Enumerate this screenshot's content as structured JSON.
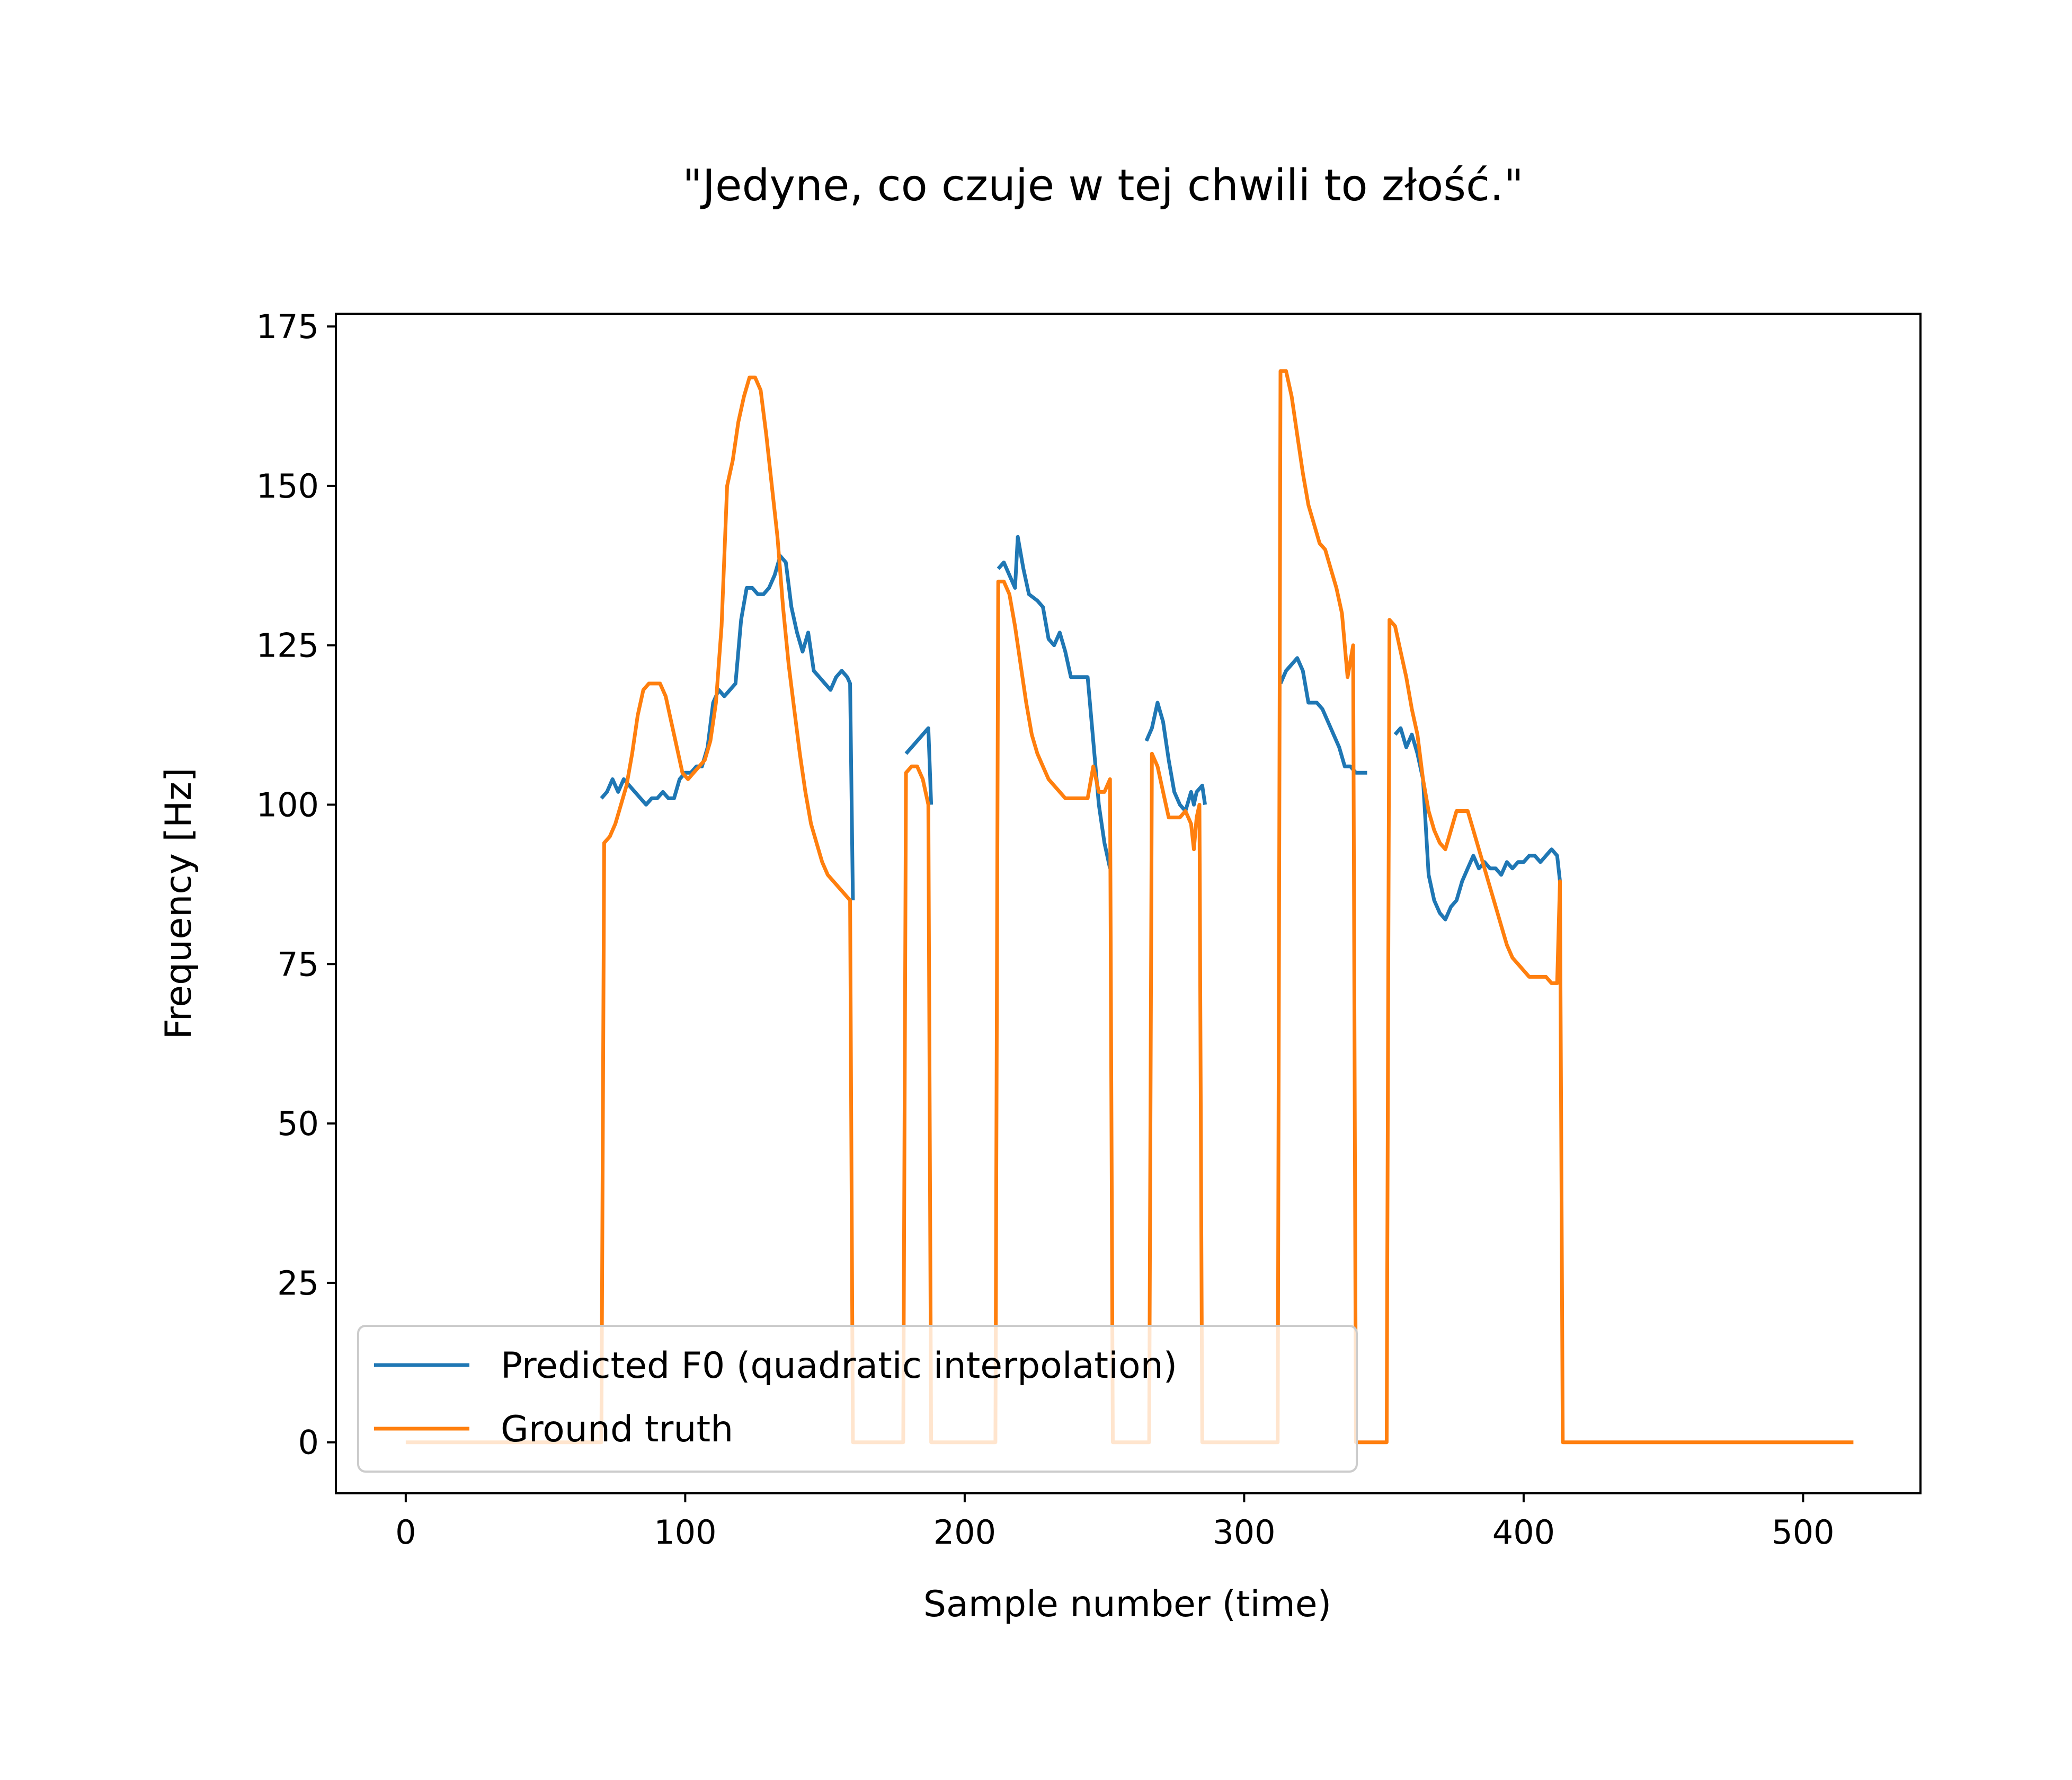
{
  "chart_data": {
    "type": "line",
    "title": "\"Jedyne, co czuje w tej chwili to złość.\"",
    "xlabel": "Sample number (time)",
    "ylabel": "Frequency [Hz]",
    "xlim": [
      -25,
      542
    ],
    "ylim": [
      -8,
      177
    ],
    "xticks": [
      0,
      100,
      200,
      300,
      400,
      500
    ],
    "yticks": [
      0,
      25,
      50,
      75,
      100,
      125,
      150,
      175
    ],
    "grid": false,
    "legend_position": "lower-left",
    "series": [
      {
        "name": "Predicted F0 (quadratic interpolation)",
        "color": "#1f77b4",
        "segments": [
          [
            [
              70,
              101
            ],
            [
              72,
              102
            ],
            [
              74,
              104
            ],
            [
              76,
              102
            ],
            [
              78,
              104
            ],
            [
              80,
              103
            ],
            [
              82,
              102
            ],
            [
              84,
              101
            ],
            [
              86,
              100
            ],
            [
              88,
              101
            ],
            [
              90,
              101
            ],
            [
              92,
              102
            ],
            [
              94,
              101
            ],
            [
              96,
              101
            ],
            [
              98,
              104
            ],
            [
              100,
              105
            ],
            [
              102,
              105
            ],
            [
              104,
              106
            ],
            [
              106,
              106
            ],
            [
              108,
              109
            ],
            [
              110,
              116
            ],
            [
              112,
              118
            ],
            [
              114,
              117
            ],
            [
              116,
              118
            ],
            [
              118,
              119
            ],
            [
              120,
              129
            ],
            [
              122,
              134
            ],
            [
              124,
              134
            ],
            [
              126,
              133
            ],
            [
              128,
              133
            ],
            [
              130,
              134
            ],
            [
              132,
              136
            ],
            [
              134,
              139
            ],
            [
              136,
              138
            ],
            [
              138,
              131
            ],
            [
              140,
              127
            ],
            [
              142,
              124
            ],
            [
              144,
              127
            ],
            [
              146,
              121
            ],
            [
              148,
              120
            ],
            [
              150,
              119
            ],
            [
              152,
              118
            ],
            [
              154,
              120
            ],
            [
              156,
              121
            ],
            [
              158,
              120
            ],
            [
              159,
              119
            ],
            [
              160,
              85
            ]
          ],
          [
            [
              179,
              108
            ],
            [
              181,
              109
            ],
            [
              183,
              110
            ],
            [
              185,
              111
            ],
            [
              187,
              112
            ],
            [
              188,
              100
            ]
          ],
          [
            [
              212,
              137
            ],
            [
              214,
              138
            ],
            [
              216,
              136
            ],
            [
              218,
              134
            ],
            [
              219,
              142
            ],
            [
              221,
              137
            ],
            [
              223,
              133
            ],
            [
              226,
              132
            ],
            [
              228,
              131
            ],
            [
              230,
              126
            ],
            [
              232,
              125
            ],
            [
              234,
              127
            ],
            [
              236,
              124
            ],
            [
              238,
              120
            ],
            [
              240,
              120
            ],
            [
              242,
              120
            ],
            [
              244,
              120
            ],
            [
              246,
              110
            ],
            [
              248,
              100
            ],
            [
              250,
              94
            ],
            [
              252,
              90
            ]
          ],
          [
            [
              265,
              110
            ],
            [
              267,
              112
            ],
            [
              269,
              116
            ],
            [
              271,
              113
            ],
            [
              273,
              107
            ],
            [
              275,
              102
            ],
            [
              277,
              100
            ],
            [
              279,
              99
            ],
            [
              281,
              102
            ],
            [
              282,
              100
            ],
            [
              283,
              102
            ],
            [
              285,
              103
            ],
            [
              286,
              100
            ]
          ],
          [
            [
              313,
              119
            ],
            [
              315,
              121
            ],
            [
              317,
              122
            ],
            [
              319,
              123
            ],
            [
              321,
              121
            ],
            [
              323,
              116
            ],
            [
              326,
              116
            ],
            [
              328,
              115
            ],
            [
              330,
              113
            ],
            [
              332,
              111
            ],
            [
              334,
              109
            ],
            [
              336,
              106
            ],
            [
              338,
              106
            ],
            [
              340,
              105
            ],
            [
              342,
              105
            ],
            [
              344,
              105
            ]
          ],
          [
            [
              354,
              111
            ],
            [
              356,
              112
            ],
            [
              358,
              109
            ],
            [
              360,
              111
            ],
            [
              362,
              108
            ],
            [
              364,
              104
            ],
            [
              366,
              89
            ],
            [
              368,
              85
            ],
            [
              370,
              83
            ],
            [
              372,
              82
            ],
            [
              374,
              84
            ],
            [
              376,
              85
            ],
            [
              378,
              88
            ],
            [
              380,
              90
            ],
            [
              382,
              92
            ],
            [
              384,
              90
            ],
            [
              386,
              91
            ],
            [
              388,
              90
            ],
            [
              390,
              90
            ],
            [
              392,
              89
            ],
            [
              394,
              91
            ],
            [
              396,
              90
            ],
            [
              398,
              91
            ],
            [
              400,
              91
            ],
            [
              402,
              92
            ],
            [
              404,
              92
            ],
            [
              406,
              91
            ],
            [
              408,
              92
            ],
            [
              410,
              93
            ],
            [
              412,
              92
            ],
            [
              413,
              88
            ]
          ]
        ]
      },
      {
        "name": "Ground truth",
        "color": "#ff7f0e",
        "points": [
          [
            0,
            0
          ],
          [
            70,
            0
          ],
          [
            71,
            94
          ],
          [
            73,
            95
          ],
          [
            75,
            97
          ],
          [
            77,
            100
          ],
          [
            79,
            103
          ],
          [
            81,
            108
          ],
          [
            83,
            114
          ],
          [
            85,
            118
          ],
          [
            87,
            119
          ],
          [
            89,
            119
          ],
          [
            91,
            119
          ],
          [
            93,
            117
          ],
          [
            95,
            113
          ],
          [
            97,
            109
          ],
          [
            99,
            105
          ],
          [
            101,
            104
          ],
          [
            103,
            105
          ],
          [
            105,
            106
          ],
          [
            107,
            107
          ],
          [
            109,
            110
          ],
          [
            111,
            116
          ],
          [
            113,
            128
          ],
          [
            115,
            150
          ],
          [
            117,
            154
          ],
          [
            119,
            160
          ],
          [
            121,
            164
          ],
          [
            123,
            167
          ],
          [
            125,
            167
          ],
          [
            127,
            165
          ],
          [
            129,
            158
          ],
          [
            131,
            150
          ],
          [
            133,
            142
          ],
          [
            135,
            131
          ],
          [
            137,
            122
          ],
          [
            139,
            115
          ],
          [
            141,
            108
          ],
          [
            143,
            102
          ],
          [
            145,
            97
          ],
          [
            147,
            94
          ],
          [
            149,
            91
          ],
          [
            151,
            89
          ],
          [
            153,
            88
          ],
          [
            155,
            87
          ],
          [
            157,
            86
          ],
          [
            159,
            85
          ],
          [
            160,
            0
          ],
          [
            178,
            0
          ],
          [
            179,
            105
          ],
          [
            181,
            106
          ],
          [
            183,
            106
          ],
          [
            185,
            104
          ],
          [
            187,
            100
          ],
          [
            188,
            0
          ],
          [
            211,
            0
          ],
          [
            212,
            135
          ],
          [
            214,
            135
          ],
          [
            216,
            133
          ],
          [
            218,
            128
          ],
          [
            220,
            122
          ],
          [
            222,
            116
          ],
          [
            224,
            111
          ],
          [
            226,
            108
          ],
          [
            228,
            106
          ],
          [
            230,
            104
          ],
          [
            232,
            103
          ],
          [
            234,
            102
          ],
          [
            236,
            101
          ],
          [
            238,
            101
          ],
          [
            240,
            101
          ],
          [
            242,
            101
          ],
          [
            244,
            101
          ],
          [
            246,
            106
          ],
          [
            248,
            102
          ],
          [
            250,
            102
          ],
          [
            252,
            104
          ],
          [
            253,
            0
          ],
          [
            266,
            0
          ],
          [
            267,
            108
          ],
          [
            269,
            106
          ],
          [
            271,
            102
          ],
          [
            273,
            98
          ],
          [
            275,
            98
          ],
          [
            277,
            98
          ],
          [
            279,
            99
          ],
          [
            281,
            97
          ],
          [
            282,
            93
          ],
          [
            283,
            98
          ],
          [
            284,
            100
          ],
          [
            285,
            0
          ],
          [
            312,
            0
          ],
          [
            313,
            168
          ],
          [
            315,
            168
          ],
          [
            317,
            164
          ],
          [
            319,
            158
          ],
          [
            321,
            152
          ],
          [
            323,
            147
          ],
          [
            325,
            144
          ],
          [
            327,
            141
          ],
          [
            329,
            140
          ],
          [
            331,
            137
          ],
          [
            333,
            134
          ],
          [
            335,
            130
          ],
          [
            337,
            120
          ],
          [
            339,
            125
          ],
          [
            340,
            0
          ],
          [
            351,
            0
          ],
          [
            352,
            129
          ],
          [
            354,
            128
          ],
          [
            356,
            124
          ],
          [
            358,
            120
          ],
          [
            360,
            115
          ],
          [
            362,
            111
          ],
          [
            364,
            104
          ],
          [
            366,
            99
          ],
          [
            368,
            96
          ],
          [
            370,
            94
          ],
          [
            372,
            93
          ],
          [
            374,
            96
          ],
          [
            376,
            99
          ],
          [
            378,
            99
          ],
          [
            380,
            99
          ],
          [
            382,
            96
          ],
          [
            384,
            93
          ],
          [
            386,
            90
          ],
          [
            388,
            87
          ],
          [
            390,
            84
          ],
          [
            392,
            81
          ],
          [
            394,
            78
          ],
          [
            396,
            76
          ],
          [
            398,
            75
          ],
          [
            400,
            74
          ],
          [
            402,
            73
          ],
          [
            404,
            73
          ],
          [
            406,
            73
          ],
          [
            408,
            73
          ],
          [
            410,
            72
          ],
          [
            412,
            72
          ],
          [
            413,
            88
          ],
          [
            414,
            0
          ],
          [
            518,
            0
          ]
        ]
      }
    ]
  }
}
